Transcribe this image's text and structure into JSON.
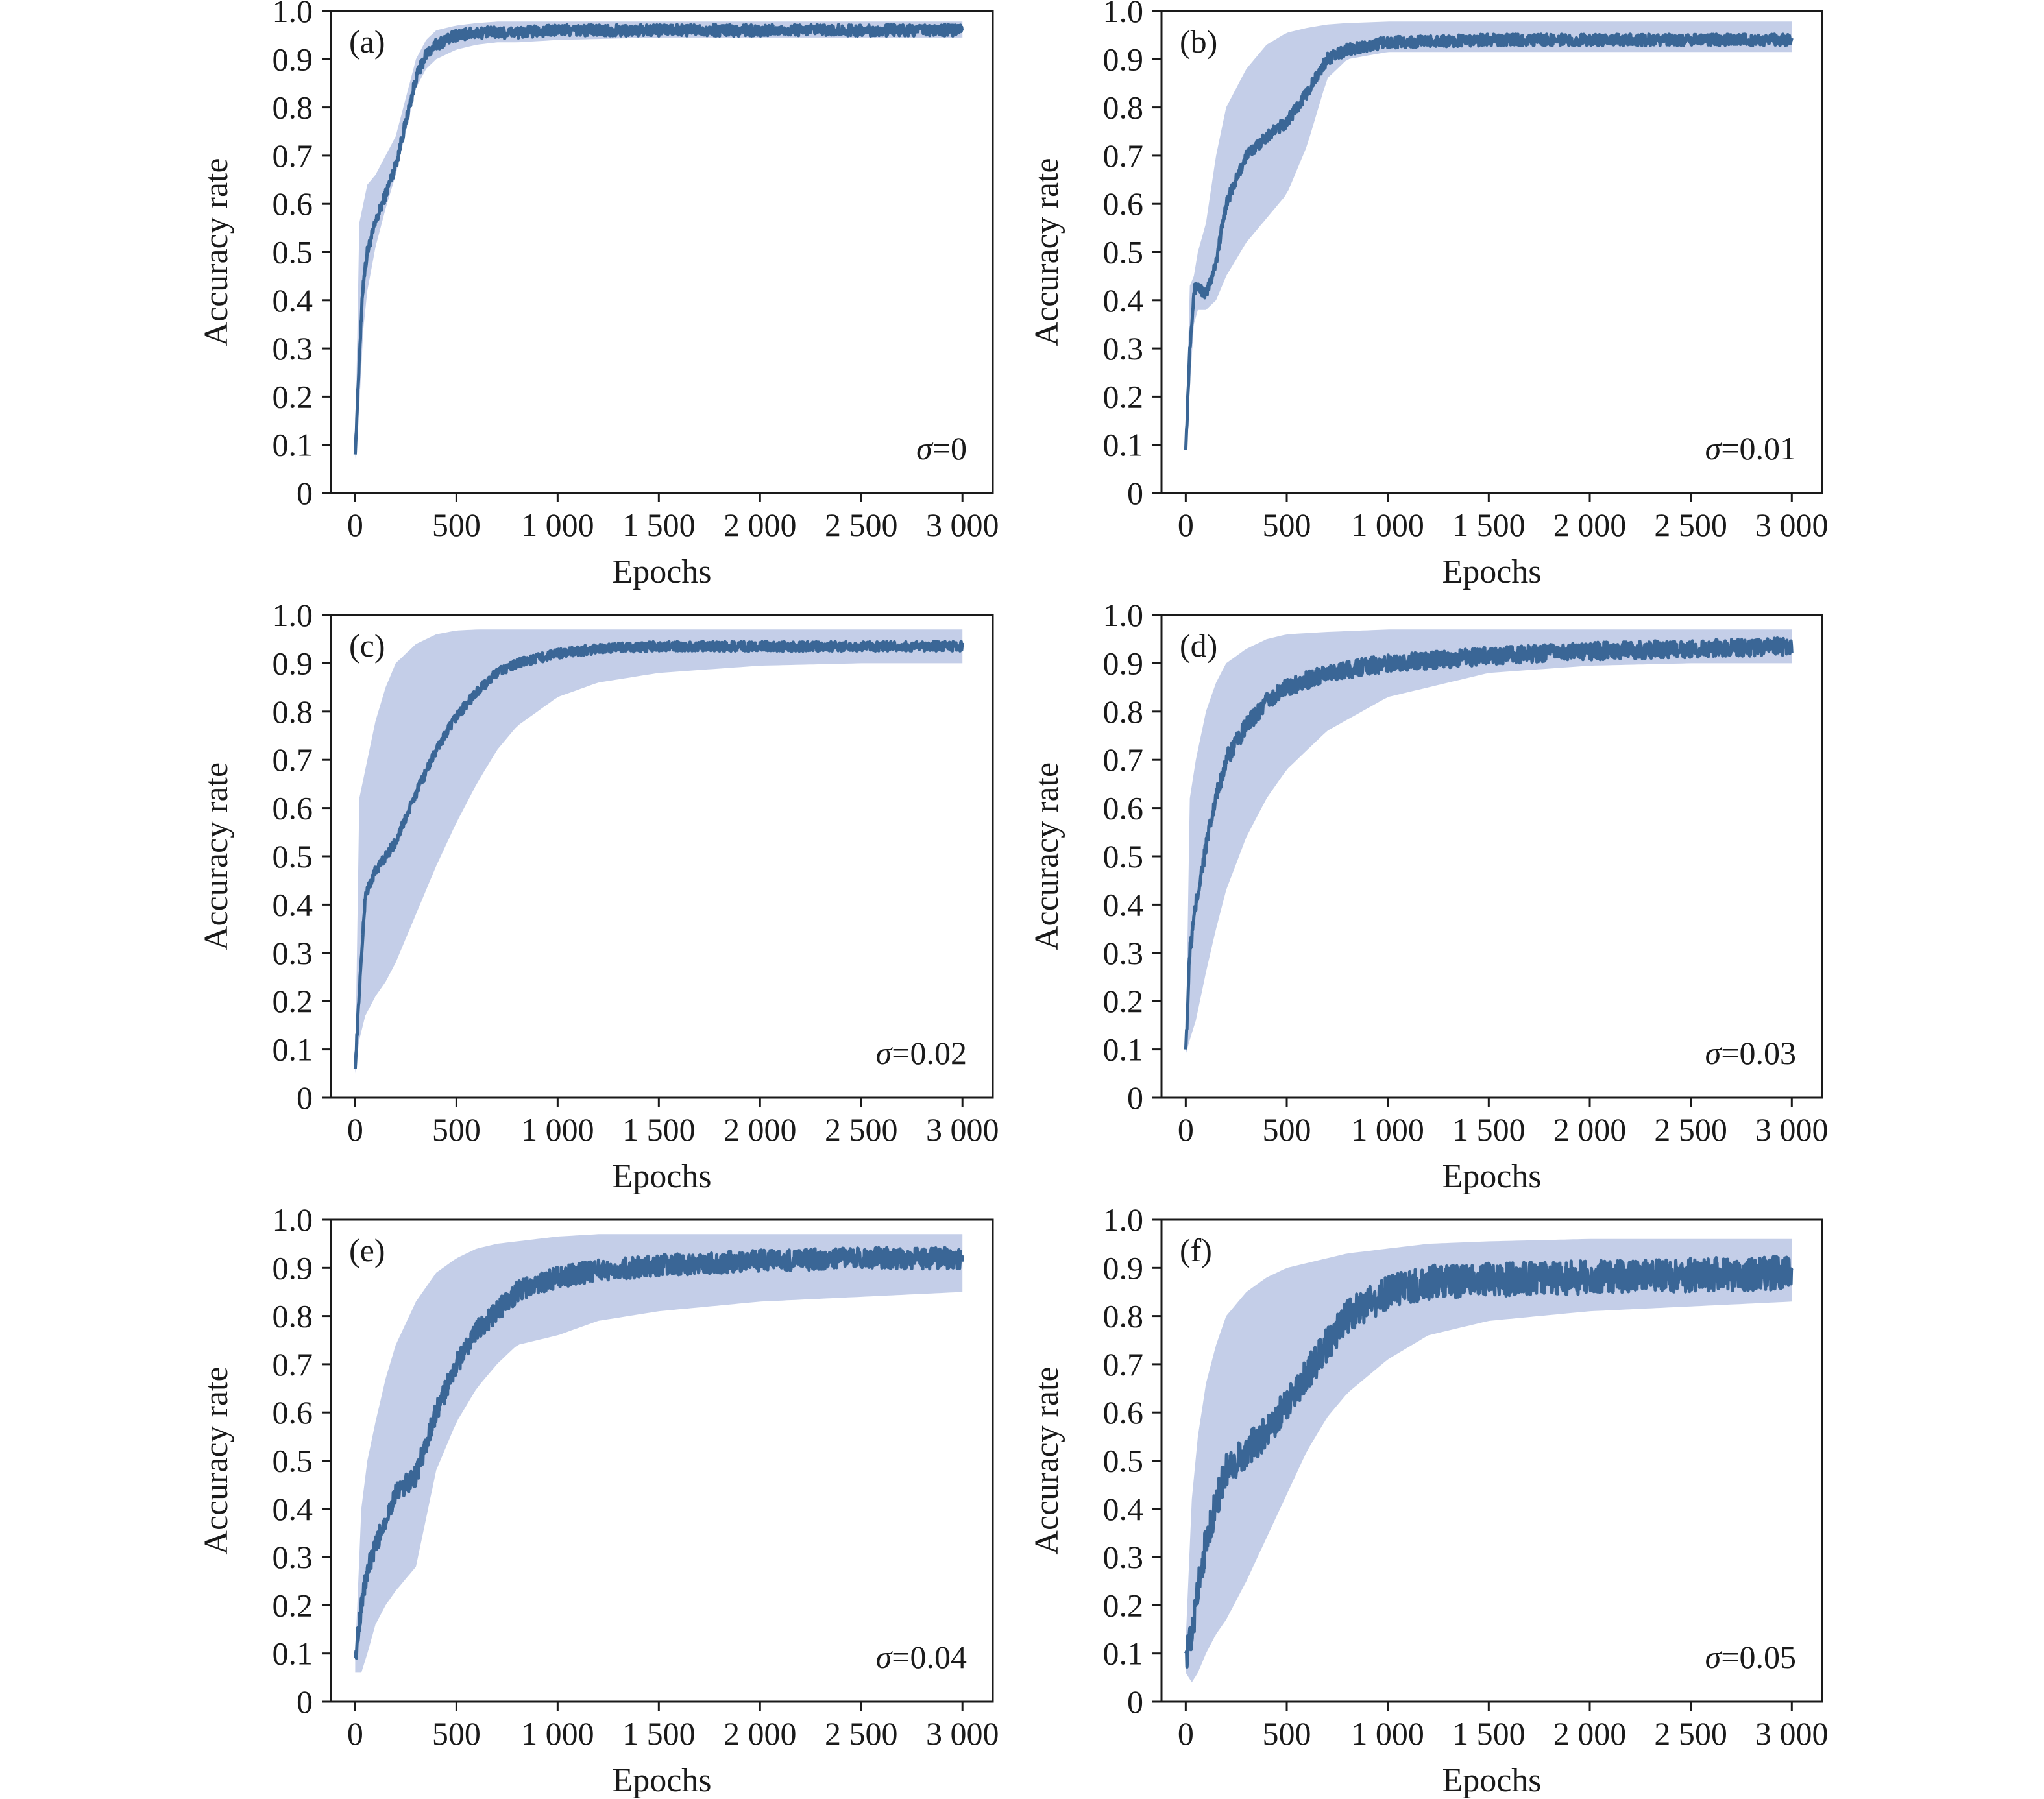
{
  "colors": {
    "line": "#3a6696",
    "band": "#bac6e4",
    "axis": "#1a1a1a"
  },
  "chart_data": [
    {
      "type": "line",
      "panel": "(a)",
      "annotation": "σ=0",
      "xlabel": "Epochs",
      "ylabel": "Accuracy rate",
      "xlim": [
        -120,
        3150
      ],
      "ylim": [
        0,
        1.0
      ],
      "xticks": [
        0,
        500,
        1000,
        1500,
        2000,
        2500,
        3000
      ],
      "xtick_labels": [
        "0",
        "500",
        "1 000",
        "1 500",
        "2 000",
        "2 500",
        "3 000"
      ],
      "yticks": [
        0,
        0.1,
        0.2,
        0.3,
        0.4,
        0.5,
        0.6,
        0.7,
        0.8,
        0.9,
        1.0
      ],
      "ytick_labels": [
        "0",
        "0.1",
        "0.2",
        "0.3",
        "0.4",
        "0.5",
        "0.6",
        "0.7",
        "0.8",
        "0.9",
        "1.0"
      ],
      "grid": false,
      "series": [
        {
          "x": [
            0,
            20,
            40,
            60,
            100,
            150,
            200,
            250,
            300,
            350,
            400,
            500,
            600,
            700,
            800,
            1000,
            1500,
            2000,
            2500,
            3000
          ],
          "y": [
            0.08,
            0.28,
            0.44,
            0.5,
            0.56,
            0.62,
            0.68,
            0.77,
            0.86,
            0.91,
            0.93,
            0.95,
            0.955,
            0.955,
            0.955,
            0.96,
            0.96,
            0.96,
            0.96,
            0.96
          ],
          "lower": [
            0.07,
            0.18,
            0.34,
            0.42,
            0.51,
            0.59,
            0.66,
            0.75,
            0.84,
            0.88,
            0.9,
            0.92,
            0.93,
            0.935,
            0.935,
            0.94,
            0.945,
            0.945,
            0.945,
            0.945
          ],
          "upper": [
            0.09,
            0.56,
            0.6,
            0.64,
            0.66,
            0.7,
            0.74,
            0.82,
            0.9,
            0.94,
            0.96,
            0.97,
            0.975,
            0.978,
            0.978,
            0.978,
            0.978,
            0.978,
            0.978,
            0.978
          ]
        }
      ]
    },
    {
      "type": "line",
      "panel": "(b)",
      "annotation": "σ=0.01",
      "xlabel": "Epochs",
      "ylabel": "Accuracy rate",
      "xlim": [
        -120,
        3150
      ],
      "ylim": [
        0,
        1.0
      ],
      "xticks": [
        0,
        500,
        1000,
        1500,
        2000,
        2500,
        3000
      ],
      "xtick_labels": [
        "0",
        "500",
        "1 000",
        "1 500",
        "2 000",
        "2 500",
        "3 000"
      ],
      "yticks": [
        0,
        0.1,
        0.2,
        0.3,
        0.4,
        0.5,
        0.6,
        0.7,
        0.8,
        0.9,
        1.0
      ],
      "ytick_labels": [
        "0",
        "0.1",
        "0.2",
        "0.3",
        "0.4",
        "0.5",
        "0.6",
        "0.7",
        "0.8",
        "0.9",
        "1.0"
      ],
      "grid": false,
      "series": [
        {
          "x": [
            0,
            20,
            40,
            60,
            100,
            150,
            200,
            300,
            400,
            500,
            600,
            700,
            800,
            1000,
            1500,
            2000,
            2500,
            3000
          ],
          "y": [
            0.09,
            0.3,
            0.42,
            0.43,
            0.41,
            0.48,
            0.6,
            0.7,
            0.74,
            0.77,
            0.83,
            0.9,
            0.92,
            0.935,
            0.94,
            0.94,
            0.94,
            0.94
          ],
          "lower": [
            0.08,
            0.22,
            0.35,
            0.38,
            0.38,
            0.4,
            0.45,
            0.52,
            0.57,
            0.62,
            0.72,
            0.86,
            0.9,
            0.915,
            0.915,
            0.915,
            0.915,
            0.915
          ],
          "upper": [
            0.1,
            0.43,
            0.45,
            0.5,
            0.56,
            0.7,
            0.8,
            0.88,
            0.93,
            0.955,
            0.965,
            0.972,
            0.975,
            0.978,
            0.978,
            0.978,
            0.978,
            0.978
          ]
        }
      ]
    },
    {
      "type": "line",
      "panel": "(c)",
      "annotation": "σ=0.02",
      "xlabel": "Epochs",
      "ylabel": "Accuracy rate",
      "xlim": [
        -120,
        3150
      ],
      "ylim": [
        0,
        1.0
      ],
      "xticks": [
        0,
        500,
        1000,
        1500,
        2000,
        2500,
        3000
      ],
      "xtick_labels": [
        "0",
        "500",
        "1 000",
        "1 500",
        "2 000",
        "2 500",
        "3 000"
      ],
      "yticks": [
        0,
        0.1,
        0.2,
        0.3,
        0.4,
        0.5,
        0.6,
        0.7,
        0.8,
        0.9,
        1.0
      ],
      "ytick_labels": [
        "0",
        "0.1",
        "0.2",
        "0.3",
        "0.4",
        "0.5",
        "0.6",
        "0.7",
        "0.8",
        "0.9",
        "1.0"
      ],
      "grid": false,
      "series": [
        {
          "x": [
            0,
            20,
            50,
            100,
            150,
            200,
            300,
            400,
            500,
            600,
            700,
            800,
            1000,
            1200,
            1500,
            2000,
            2500,
            3000
          ],
          "y": [
            0.06,
            0.22,
            0.42,
            0.47,
            0.5,
            0.53,
            0.63,
            0.72,
            0.79,
            0.84,
            0.88,
            0.9,
            0.92,
            0.93,
            0.935,
            0.935,
            0.935,
            0.935
          ],
          "lower": [
            0.05,
            0.12,
            0.17,
            0.21,
            0.24,
            0.28,
            0.38,
            0.48,
            0.57,
            0.65,
            0.72,
            0.77,
            0.83,
            0.86,
            0.88,
            0.895,
            0.9,
            0.9
          ],
          "upper": [
            0.07,
            0.62,
            0.68,
            0.78,
            0.85,
            0.9,
            0.94,
            0.96,
            0.968,
            0.97,
            0.97,
            0.97,
            0.97,
            0.97,
            0.97,
            0.97,
            0.97,
            0.97
          ]
        }
      ]
    },
    {
      "type": "line",
      "panel": "(d)",
      "annotation": "σ=0.03",
      "xlabel": "Epochs",
      "ylabel": "Accuracy rate",
      "xlim": [
        -120,
        3150
      ],
      "ylim": [
        0,
        1.0
      ],
      "xticks": [
        0,
        500,
        1000,
        1500,
        2000,
        2500,
        3000
      ],
      "xtick_labels": [
        "0",
        "500",
        "1 000",
        "1 500",
        "2 000",
        "2 500",
        "3 000"
      ],
      "yticks": [
        0,
        0.1,
        0.2,
        0.3,
        0.4,
        0.5,
        0.6,
        0.7,
        0.8,
        0.9,
        1.0
      ],
      "ytick_labels": [
        "0",
        "0.1",
        "0.2",
        "0.3",
        "0.4",
        "0.5",
        "0.6",
        "0.7",
        "0.8",
        "0.9",
        "1.0"
      ],
      "grid": false,
      "series": [
        {
          "x": [
            0,
            20,
            50,
            100,
            150,
            200,
            300,
            400,
            500,
            700,
            1000,
            1500,
            2000,
            2500,
            3000
          ],
          "y": [
            0.1,
            0.3,
            0.4,
            0.52,
            0.62,
            0.7,
            0.77,
            0.82,
            0.85,
            0.88,
            0.9,
            0.915,
            0.925,
            0.93,
            0.935
          ],
          "lower": [
            0.09,
            0.12,
            0.16,
            0.26,
            0.35,
            0.43,
            0.54,
            0.62,
            0.68,
            0.76,
            0.83,
            0.88,
            0.895,
            0.9,
            0.9
          ],
          "upper": [
            0.11,
            0.62,
            0.7,
            0.8,
            0.86,
            0.9,
            0.93,
            0.95,
            0.96,
            0.965,
            0.97,
            0.97,
            0.97,
            0.97,
            0.97
          ]
        }
      ]
    },
    {
      "type": "line",
      "panel": "(e)",
      "annotation": "σ=0.04",
      "xlabel": "Epochs",
      "ylabel": "Accuracy rate",
      "xlim": [
        -120,
        3150
      ],
      "ylim": [
        0,
        1.0
      ],
      "xticks": [
        0,
        500,
        1000,
        1500,
        2000,
        2500,
        3000
      ],
      "xtick_labels": [
        "0",
        "500",
        "1 000",
        "1 500",
        "2 000",
        "2 500",
        "3 000"
      ],
      "yticks": [
        0,
        0.1,
        0.2,
        0.3,
        0.4,
        0.5,
        0.6,
        0.7,
        0.8,
        0.9,
        1.0
      ],
      "ytick_labels": [
        "0",
        "0.1",
        "0.2",
        "0.3",
        "0.4",
        "0.5",
        "0.6",
        "0.7",
        "0.8",
        "0.9",
        "1.0"
      ],
      "grid": false,
      "series": [
        {
          "x": [
            0,
            30,
            60,
            100,
            150,
            200,
            300,
            400,
            500,
            600,
            700,
            800,
            1000,
            1200,
            1500,
            2000,
            2500,
            3000
          ],
          "y": [
            0.09,
            0.2,
            0.27,
            0.32,
            0.38,
            0.43,
            0.47,
            0.6,
            0.7,
            0.77,
            0.81,
            0.85,
            0.88,
            0.895,
            0.905,
            0.915,
            0.92,
            0.92
          ],
          "lower": [
            0.06,
            0.06,
            0.1,
            0.16,
            0.2,
            0.23,
            0.28,
            0.48,
            0.58,
            0.65,
            0.7,
            0.74,
            0.76,
            0.79,
            0.81,
            0.83,
            0.84,
            0.85
          ],
          "upper": [
            0.1,
            0.4,
            0.5,
            0.58,
            0.67,
            0.74,
            0.83,
            0.89,
            0.92,
            0.94,
            0.95,
            0.955,
            0.965,
            0.97,
            0.97,
            0.97,
            0.97,
            0.97
          ]
        }
      ]
    },
    {
      "type": "line",
      "panel": "(f)",
      "annotation": "σ=0.05",
      "xlabel": "Epochs",
      "ylabel": "Accuracy rate",
      "xlim": [
        -120,
        3150
      ],
      "ylim": [
        0,
        1.0
      ],
      "xticks": [
        0,
        500,
        1000,
        1500,
        2000,
        2500,
        3000
      ],
      "xtick_labels": [
        "0",
        "500",
        "1 000",
        "1 500",
        "2 000",
        "2 500",
        "3 000"
      ],
      "yticks": [
        0,
        0.1,
        0.2,
        0.3,
        0.4,
        0.5,
        0.6,
        0.7,
        0.8,
        0.9,
        1.0
      ],
      "ytick_labels": [
        "0",
        "0.1",
        "0.2",
        "0.3",
        "0.4",
        "0.5",
        "0.6",
        "0.7",
        "0.8",
        "0.9",
        "1.0"
      ],
      "grid": false,
      "series": [
        {
          "x": [
            0,
            30,
            60,
            100,
            150,
            200,
            300,
            400,
            500,
            600,
            700,
            800,
            1000,
            1200,
            1500,
            2000,
            2500,
            3000
          ],
          "y": [
            0.1,
            0.13,
            0.24,
            0.33,
            0.41,
            0.48,
            0.52,
            0.56,
            0.62,
            0.68,
            0.74,
            0.8,
            0.85,
            0.87,
            0.875,
            0.88,
            0.885,
            0.89
          ],
          "lower": [
            0.06,
            0.04,
            0.06,
            0.1,
            0.14,
            0.17,
            0.25,
            0.34,
            0.43,
            0.52,
            0.59,
            0.64,
            0.71,
            0.76,
            0.79,
            0.81,
            0.82,
            0.83
          ],
          "upper": [
            0.13,
            0.42,
            0.55,
            0.66,
            0.74,
            0.8,
            0.85,
            0.88,
            0.9,
            0.91,
            0.92,
            0.93,
            0.94,
            0.95,
            0.955,
            0.96,
            0.96,
            0.96
          ]
        }
      ]
    }
  ]
}
